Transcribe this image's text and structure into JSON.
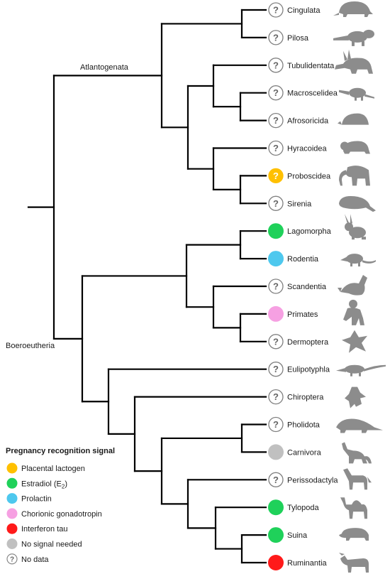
{
  "clades": {
    "atlantogenata": "Atlantogenata",
    "boreoeutheria": "Boeroeutheria"
  },
  "taxa": [
    {
      "name": "Cingulata",
      "signal": "none",
      "icon": "armadillo-icon"
    },
    {
      "name": "Pilosa",
      "signal": "none",
      "icon": "anteater-icon"
    },
    {
      "name": "Tubulidentata",
      "signal": "none",
      "icon": "aardvark-icon"
    },
    {
      "name": "Macroscelidea",
      "signal": "none",
      "icon": "elephant-shrew-icon"
    },
    {
      "name": "Afrosoricida",
      "signal": "none",
      "icon": "tenrec-icon"
    },
    {
      "name": "Hyracoidea",
      "signal": "none",
      "icon": "hyrax-icon"
    },
    {
      "name": "Proboscidea",
      "signal": "placental_lactogen_uncertain",
      "icon": "elephant-icon"
    },
    {
      "name": "Sirenia",
      "signal": "none",
      "icon": "manatee-icon"
    },
    {
      "name": "Lagomorpha",
      "signal": "estradiol",
      "icon": "rabbit-icon"
    },
    {
      "name": "Rodentia",
      "signal": "prolactin",
      "icon": "rat-icon"
    },
    {
      "name": "Scandentia",
      "signal": "none",
      "icon": "treeshrew-icon"
    },
    {
      "name": "Primates",
      "signal": "chorionic_gonadotropin",
      "icon": "primate-icon"
    },
    {
      "name": "Dermoptera",
      "signal": "none",
      "icon": "colugo-icon"
    },
    {
      "name": "Eulipotyphla",
      "signal": "none",
      "icon": "shrew-icon"
    },
    {
      "name": "Chiroptera",
      "signal": "none",
      "icon": "bat-icon"
    },
    {
      "name": "Pholidota",
      "signal": "none",
      "icon": "pangolin-icon"
    },
    {
      "name": "Carnivora",
      "signal": "no_signal_needed",
      "icon": "fox-icon"
    },
    {
      "name": "Perissodactyla",
      "signal": "none",
      "icon": "horse-icon"
    },
    {
      "name": "Tylopoda",
      "signal": "estradiol",
      "icon": "camel-icon"
    },
    {
      "name": "Suina",
      "signal": "estradiol",
      "icon": "pig-icon"
    },
    {
      "name": "Ruminantia",
      "signal": "interferon_tau",
      "icon": "cow-icon"
    }
  ],
  "colors": {
    "placental_lactogen": "#ffc000",
    "estradiol": "#1fd15a",
    "prolactin": "#4ec8ee",
    "chorionic_gonadotropin": "#f6a0e2",
    "interferon_tau": "#ff1a1a",
    "no_signal_needed": "#c0c0c0",
    "no_data_outline": "#7f7f7f",
    "silhouette": "#8c8c8c"
  },
  "legend": {
    "title": "Pregnancy recognition signal",
    "items": [
      {
        "key": "placental_lactogen",
        "label": "Placental lactogen"
      },
      {
        "key": "estradiol",
        "label": "Estradiol (E",
        "sub": "2",
        "suffix": ")"
      },
      {
        "key": "prolactin",
        "label": "Prolactin"
      },
      {
        "key": "chorionic_gonadotropin",
        "label": "Chorionic gonadotropin"
      },
      {
        "key": "interferon_tau",
        "label": "Interferon tau"
      },
      {
        "key": "no_signal_needed",
        "label": "No signal needed"
      },
      {
        "key": "none",
        "label": "No data"
      }
    ]
  },
  "marker_glyph": "?"
}
